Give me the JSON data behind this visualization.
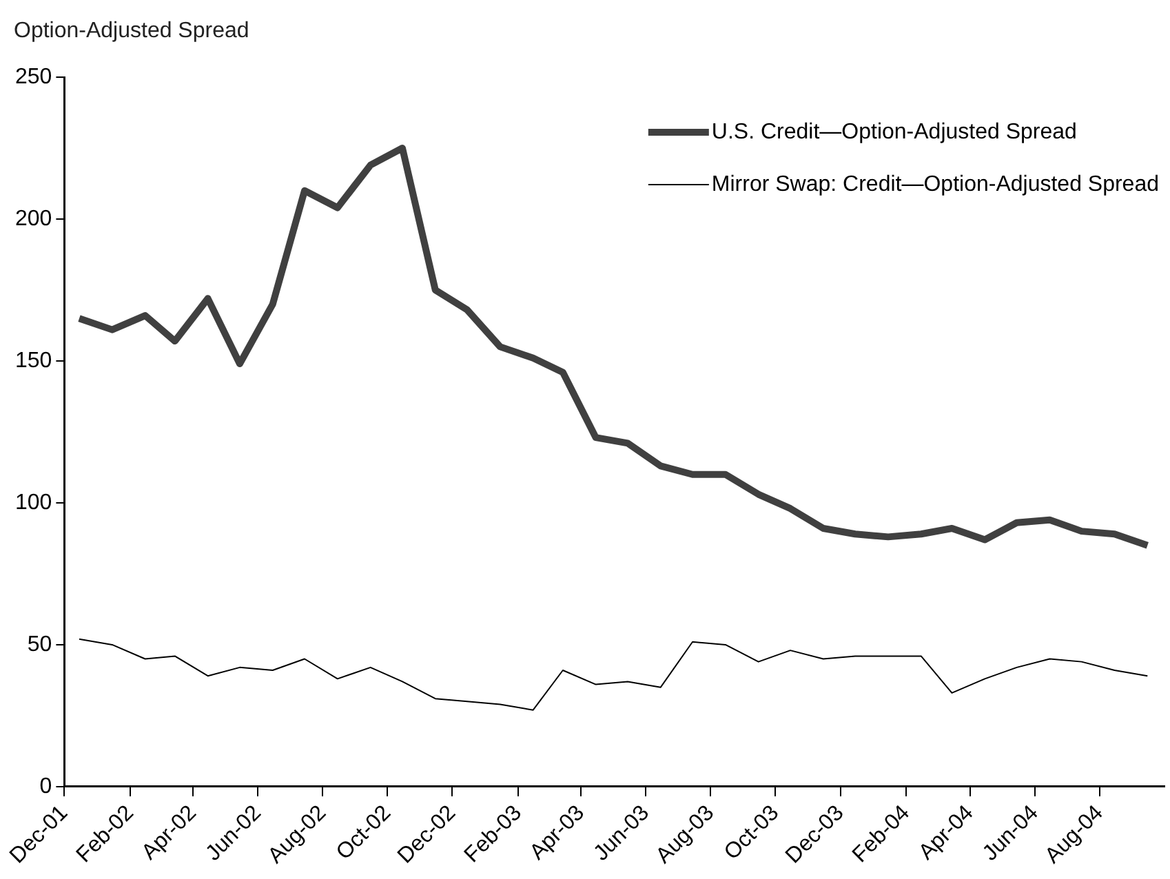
{
  "chart_data": {
    "type": "line",
    "ylabel": "Option-Adjusted Spread",
    "x": [
      "2001-12-15",
      "2002-01-15",
      "2002-02-15",
      "2002-03-15",
      "2002-04-15",
      "2002-05-15",
      "2002-06-15",
      "2002-07-15",
      "2002-08-15",
      "2002-09-15",
      "2002-10-15",
      "2002-11-15",
      "2002-12-15",
      "2003-01-15",
      "2003-02-15",
      "2003-03-15",
      "2003-04-15",
      "2003-05-15",
      "2003-06-15",
      "2003-07-15",
      "2003-08-15",
      "2003-09-15",
      "2003-10-15",
      "2003-11-15",
      "2003-12-15",
      "2004-01-15",
      "2004-02-15",
      "2004-03-15",
      "2004-04-15",
      "2004-05-15",
      "2004-06-15",
      "2004-07-15",
      "2004-08-15",
      "2004-09-15"
    ],
    "series": [
      {
        "name": "U.S. Credit—Option-Adjusted Spread",
        "color": "#404040",
        "values": [
          165,
          161,
          166,
          157,
          172,
          149,
          170,
          210,
          204,
          219,
          225,
          175,
          168,
          155,
          151,
          146,
          123,
          121,
          113,
          110,
          110,
          103,
          98,
          91,
          89,
          88,
          89,
          91,
          87,
          93,
          94,
          90,
          89,
          85
        ]
      },
      {
        "name": "Mirror Swap: Credit—Option-Adjusted Spread",
        "color": "#000000",
        "values": [
          52,
          50,
          45,
          46,
          39,
          42,
          41,
          45,
          38,
          42,
          37,
          31,
          30,
          29,
          27,
          41,
          36,
          37,
          35,
          51,
          50,
          44,
          48,
          45,
          46,
          46,
          46,
          33,
          38,
          42,
          45,
          44,
          41,
          39
        ]
      }
    ],
    "xlim": [
      "2001-12-01",
      "2004-10-01"
    ],
    "xticks": [
      {
        "value": "2001-12-01",
        "label": "Dec-01"
      },
      {
        "value": "2002-02-01",
        "label": "Feb-02"
      },
      {
        "value": "2002-04-01",
        "label": "Apr-02"
      },
      {
        "value": "2002-06-01",
        "label": "Jun-02"
      },
      {
        "value": "2002-08-01",
        "label": "Aug-02"
      },
      {
        "value": "2002-10-01",
        "label": "Oct-02"
      },
      {
        "value": "2002-12-01",
        "label": "Dec-02"
      },
      {
        "value": "2003-02-01",
        "label": "Feb-03"
      },
      {
        "value": "2003-04-01",
        "label": "Apr-03"
      },
      {
        "value": "2003-06-01",
        "label": "Jun-03"
      },
      {
        "value": "2003-08-01",
        "label": "Aug-03"
      },
      {
        "value": "2003-10-01",
        "label": "Oct-03"
      },
      {
        "value": "2003-12-01",
        "label": "Dec-03"
      },
      {
        "value": "2004-02-01",
        "label": "Feb-04"
      },
      {
        "value": "2004-04-01",
        "label": "Apr-04"
      },
      {
        "value": "2004-06-01",
        "label": "Jun-04"
      },
      {
        "value": "2004-08-01",
        "label": "Aug-04"
      }
    ],
    "ylim": [
      0,
      250
    ],
    "yticks": [
      0,
      50,
      100,
      150,
      200,
      250
    ],
    "grid": false,
    "legend": "top right",
    "marker": "none",
    "line_style": "solid"
  }
}
